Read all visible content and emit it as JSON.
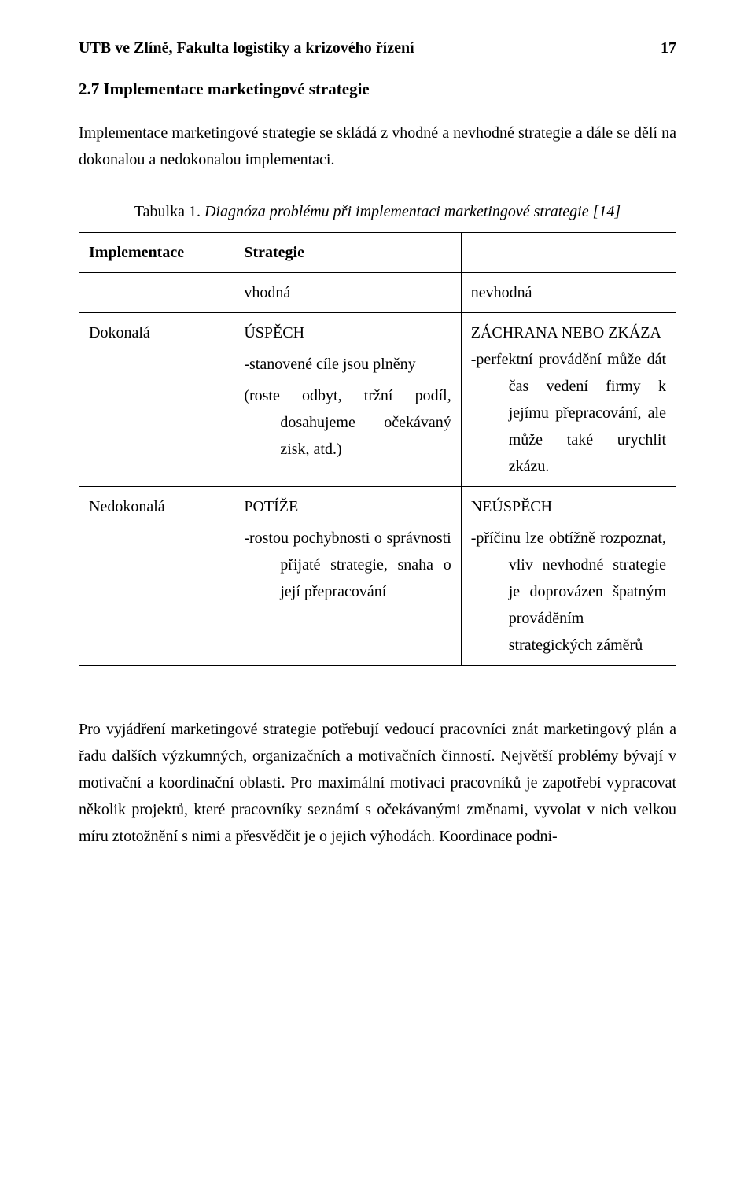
{
  "header": {
    "left": "UTB ve Zlíně, Fakulta logistiky a krizového řízení",
    "page_number": "17"
  },
  "section": {
    "title": "2.7   Implementace marketingové strategie",
    "intro": "Implementace marketingové strategie se skládá z vhodné a nevhodné strategie a dále se dělí na dokonalou a nedokonalou implementaci."
  },
  "table": {
    "caption_label": "Tabulka 1.",
    "caption_rest": " Diagnóza problému při implementaci marketingové strategie [14]",
    "row_header": {
      "implementace": "Implementace",
      "strategie": "Strategie"
    },
    "subheader": {
      "vhodna": "vhodná",
      "nevhodna": "nevhodná"
    },
    "rows": [
      {
        "left": "Dokonalá",
        "a_lead": "ÚSPĚCH",
        "a_p1": "-stanovené cíle jsou plněny",
        "a_p2": "(roste odbyt, tržní podíl, dosahujeme očekávaný zisk, atd.)",
        "b_lead": "ZÁCHRANA        NEBO ZKÁZA",
        "b_p1": "-perfektní provádění může dát čas vedení firmy k jejímu přepracování, ale může také urychlit zkázu."
      },
      {
        "left": "Nedokonalá",
        "a_lead": "POTÍŽE",
        "a_p1": "-rostou pochybnosti o správnosti přijaté strategie, snaha o její přepracování",
        "b_lead": "NEÚSPĚCH",
        "b_p1": "-příčinu lze obtížně rozpoznat, vliv nevhodné strategie je doprovázen špatným prováděním strategických záměrů"
      }
    ]
  },
  "closing": "Pro vyjádření marketingové strategie potřebují vedoucí pracovníci znát marketingový plán a řadu dalších výzkumných, organizačních a motivačních činností. Největší problémy bývají v motivační a koordinační oblasti. Pro maximální motivaci pracovníků je zapotřebí vypracovat několik projektů, které pracovníky seznámí s očekávanými změnami, vyvolat v nich velkou míru ztotožnění s nimi a přesvědčit je o jejich výhodách. Koordinace podni-"
}
